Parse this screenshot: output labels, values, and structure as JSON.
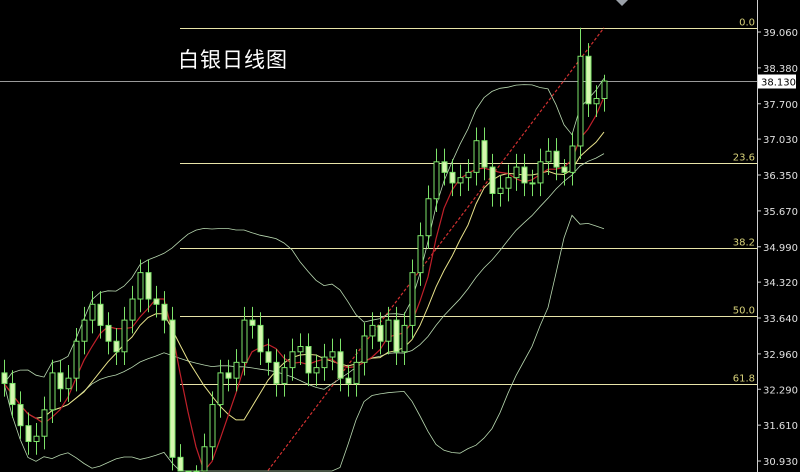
{
  "chart_data": {
    "type": "candlestick",
    "title": "白银日线图",
    "ylim": [
      30.75,
      39.6
    ],
    "y_ticks": [
      "39.060",
      "38.380",
      "37.700",
      "37.030",
      "36.350",
      "35.670",
      "34.990",
      "34.320",
      "33.640",
      "32.960",
      "32.290",
      "31.610",
      "30.930"
    ],
    "current_price": "38.130",
    "fib_levels": [
      {
        "label": "0.0",
        "price": 39.14
      },
      {
        "label": "23.6",
        "price": 36.58
      },
      {
        "label": "38.2",
        "price": 34.97
      },
      {
        "label": "50.0",
        "price": 33.68
      },
      {
        "label": "61.8",
        "price": 32.39
      }
    ],
    "trendline": {
      "from_candle": 33,
      "from_price": 30.75,
      "to_candle": 75,
      "to_price": 39.14
    },
    "overlays": [
      "moving average (fast)",
      "moving average (slow)",
      "Bollinger bands"
    ],
    "colors": {
      "candle": "#7de36a",
      "candle_body_up": "#000000",
      "candle_body_down": "#d6f7b0",
      "ma_fast": "#c0202a",
      "ma_slow": "#e8e28a",
      "bands": "#b8d8b0",
      "fib": "#e8e4a8",
      "trend": "#d03030",
      "axis": "#cfcfcf"
    },
    "ohlc": [
      [
        32.6,
        32.85,
        32.15,
        32.4
      ],
      [
        32.4,
        32.65,
        31.75,
        32.0
      ],
      [
        32.0,
        32.25,
        31.35,
        31.6
      ],
      [
        31.6,
        31.85,
        31.05,
        31.3
      ],
      [
        31.3,
        31.65,
        31.05,
        31.4
      ],
      [
        31.4,
        32.15,
        31.15,
        31.9
      ],
      [
        31.9,
        32.85,
        31.65,
        32.6
      ],
      [
        32.6,
        32.85,
        32.05,
        32.3
      ],
      [
        32.3,
        32.75,
        32.05,
        32.5
      ],
      [
        32.5,
        33.45,
        32.25,
        33.2
      ],
      [
        33.2,
        33.85,
        32.95,
        33.6
      ],
      [
        33.6,
        34.15,
        33.35,
        33.9
      ],
      [
        33.9,
        34.15,
        33.25,
        33.5
      ],
      [
        33.5,
        33.75,
        32.95,
        33.2
      ],
      [
        33.2,
        33.45,
        32.75,
        33.0
      ],
      [
        33.0,
        33.85,
        32.75,
        33.6
      ],
      [
        33.6,
        34.25,
        33.35,
        34.0
      ],
      [
        34.0,
        34.75,
        33.75,
        34.5
      ],
      [
        34.5,
        34.75,
        33.75,
        34.0
      ],
      [
        34.0,
        34.25,
        33.65,
        33.9
      ],
      [
        33.9,
        34.15,
        33.35,
        33.6
      ],
      [
        33.6,
        33.85,
        30.75,
        31.0
      ],
      [
        31.0,
        31.25,
        30.25,
        30.5
      ],
      [
        30.5,
        30.75,
        30.05,
        30.3
      ],
      [
        30.3,
        30.85,
        30.05,
        30.6
      ],
      [
        30.6,
        31.45,
        30.35,
        31.2
      ],
      [
        31.2,
        32.25,
        30.95,
        32.0
      ],
      [
        32.0,
        32.85,
        31.75,
        32.6
      ],
      [
        32.6,
        32.85,
        32.25,
        32.5
      ],
      [
        32.5,
        33.05,
        32.25,
        32.8
      ],
      [
        32.8,
        33.85,
        32.55,
        33.6
      ],
      [
        33.6,
        33.85,
        33.25,
        33.5
      ],
      [
        33.5,
        33.75,
        32.75,
        33.0
      ],
      [
        33.0,
        33.25,
        32.55,
        32.8
      ],
      [
        32.8,
        33.05,
        32.15,
        32.4
      ],
      [
        32.4,
        32.95,
        32.15,
        32.7
      ],
      [
        32.7,
        33.25,
        32.45,
        33.0
      ],
      [
        33.0,
        33.35,
        32.75,
        33.1
      ],
      [
        33.1,
        33.35,
        32.35,
        32.6
      ],
      [
        32.6,
        32.95,
        32.35,
        32.7
      ],
      [
        32.7,
        33.15,
        32.45,
        32.9
      ],
      [
        32.9,
        33.25,
        32.65,
        33.0
      ],
      [
        33.0,
        33.25,
        32.25,
        32.5
      ],
      [
        32.5,
        32.75,
        32.15,
        32.4
      ],
      [
        32.4,
        33.05,
        32.15,
        32.8
      ],
      [
        32.8,
        33.55,
        32.55,
        33.3
      ],
      [
        33.3,
        33.75,
        33.05,
        33.5
      ],
      [
        33.5,
        33.75,
        32.95,
        33.2
      ],
      [
        33.2,
        33.85,
        32.95,
        33.6
      ],
      [
        33.6,
        33.85,
        32.75,
        33.0
      ],
      [
        33.0,
        33.75,
        32.75,
        33.5
      ],
      [
        33.5,
        34.75,
        33.25,
        34.5
      ],
      [
        34.5,
        35.45,
        34.25,
        35.2
      ],
      [
        35.2,
        36.15,
        34.95,
        35.9
      ],
      [
        35.9,
        36.85,
        35.65,
        36.6
      ],
      [
        36.6,
        36.85,
        36.15,
        36.4
      ],
      [
        36.4,
        36.65,
        35.95,
        36.2
      ],
      [
        36.2,
        36.55,
        35.95,
        36.3
      ],
      [
        36.3,
        36.65,
        36.05,
        36.4
      ],
      [
        36.4,
        37.25,
        36.15,
        37.0
      ],
      [
        37.0,
        37.25,
        36.25,
        36.5
      ],
      [
        36.5,
        36.75,
        35.75,
        36.0
      ],
      [
        36.0,
        36.35,
        35.75,
        36.1
      ],
      [
        36.1,
        36.55,
        35.85,
        36.3
      ],
      [
        36.3,
        36.75,
        36.05,
        36.5
      ],
      [
        36.5,
        36.75,
        35.95,
        36.2
      ],
      [
        36.2,
        36.45,
        35.95,
        36.2
      ],
      [
        36.2,
        36.85,
        35.95,
        36.6
      ],
      [
        36.6,
        37.05,
        36.35,
        36.8
      ],
      [
        36.8,
        37.05,
        36.25,
        36.5
      ],
      [
        36.5,
        36.65,
        36.15,
        36.4
      ],
      [
        36.4,
        37.15,
        36.15,
        36.9
      ],
      [
        36.9,
        39.14,
        36.65,
        38.6
      ],
      [
        38.6,
        38.85,
        37.45,
        37.7
      ],
      [
        37.7,
        38.05,
        37.45,
        37.8
      ],
      [
        37.8,
        38.25,
        37.55,
        38.13
      ]
    ]
  }
}
